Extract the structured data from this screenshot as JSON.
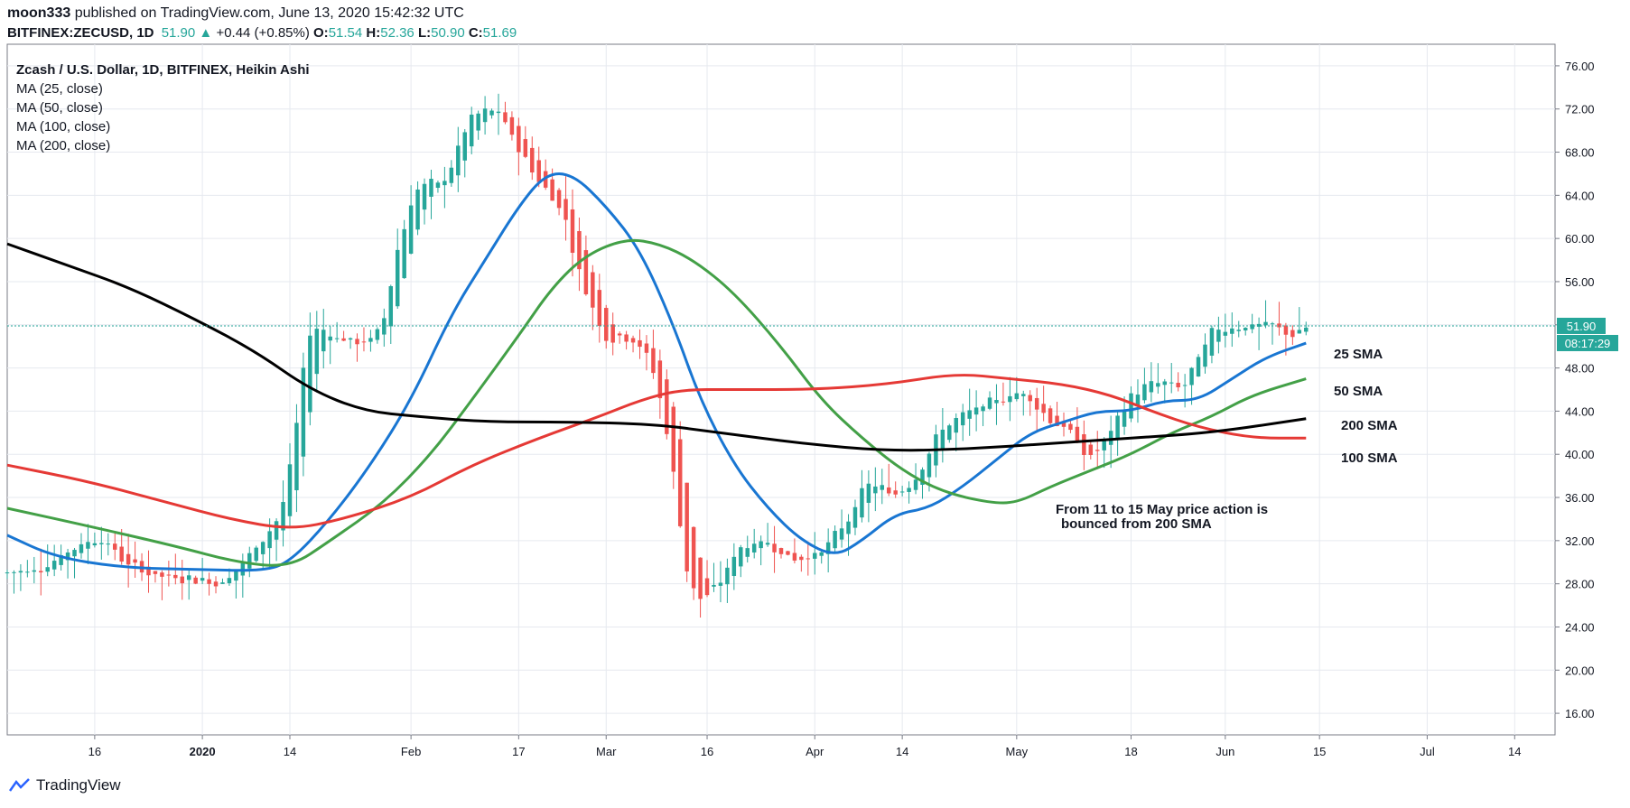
{
  "header": {
    "author": "moon333",
    "published": " published on TradingView.com, June 13, 2020 15:42:32 UTC",
    "symbol": "BITFINEX:ZECUSD, 1D",
    "last": "51.90",
    "change": "+0.44 (+0.85%)",
    "o_label": "O:",
    "o": "51.54",
    "h_label": "H:",
    "h": "52.36",
    "l_label": "L:",
    "l": "50.90",
    "c_label": "C:",
    "c": "51.69"
  },
  "legend": {
    "title": "Zcash / U.S. Dollar, 1D, BITFINEX, Heikin Ashi",
    "ma25": "MA (25, close)",
    "ma50": "MA (50, close)",
    "ma100": "MA (100, close)",
    "ma200": "MA (200, close)"
  },
  "annotations": {
    "sma25": "25 SMA",
    "sma50": "50 SMA",
    "sma200": "200 SMA",
    "sma100": "100 SMA",
    "note_line1": "From 11 to 15 May price action is",
    "note_line2": "bounced from 200 SMA"
  },
  "price_badge": "51.90",
  "countdown_badge": "08:17:29",
  "brand": "TradingView",
  "colors": {
    "up": "#26a69a",
    "down": "#ef5350",
    "ma25": "#1976d2",
    "ma50": "#43a047",
    "ma100": "#e53935",
    "ma200": "#000000",
    "grid": "#e6e9ef"
  },
  "chart_data": {
    "type": "line",
    "chart_style": "heikin-ashi candlestick",
    "ylim": [
      14,
      78
    ],
    "xlim": [
      "2019-12-03",
      "2020-07-20"
    ],
    "y_ticks": [
      "16.00",
      "20.00",
      "24.00",
      "28.00",
      "32.00",
      "36.00",
      "40.00",
      "44.00",
      "48.00",
      "52.00",
      "56.00",
      "60.00",
      "64.00",
      "68.00",
      "72.00",
      "76.00"
    ],
    "x_ticks": [
      {
        "label": "16",
        "date": "2019-12-16",
        "bold": false
      },
      {
        "label": "2020",
        "date": "2020-01-01",
        "bold": true
      },
      {
        "label": "14",
        "date": "2020-01-14",
        "bold": false
      },
      {
        "label": "Feb",
        "date": "2020-02-01",
        "bold": false
      },
      {
        "label": "17",
        "date": "2020-02-17",
        "bold": false
      },
      {
        "label": "Mar",
        "date": "2020-03-01",
        "bold": false
      },
      {
        "label": "16",
        "date": "2020-03-16",
        "bold": false
      },
      {
        "label": "Apr",
        "date": "2020-04-01",
        "bold": false
      },
      {
        "label": "14",
        "date": "2020-04-14",
        "bold": false
      },
      {
        "label": "May",
        "date": "2020-05-01",
        "bold": false
      },
      {
        "label": "18",
        "date": "2020-05-18",
        "bold": false
      },
      {
        "label": "Jun",
        "date": "2020-06-01",
        "bold": false
      },
      {
        "label": "15",
        "date": "2020-06-15",
        "bold": false
      },
      {
        "label": "Jul",
        "date": "2020-07-01",
        "bold": false
      },
      {
        "label": "14",
        "date": "2020-07-14",
        "bold": false
      }
    ],
    "last_price": 51.9,
    "grid": true,
    "close_anchors": [
      [
        "2019-12-03",
        29
      ],
      [
        "2019-12-08",
        29.5
      ],
      [
        "2019-12-13",
        31.5
      ],
      [
        "2019-12-17",
        32.5
      ],
      [
        "2019-12-21",
        29.5
      ],
      [
        "2019-12-26",
        28.5
      ],
      [
        "2019-12-31",
        28.5
      ],
      [
        "2020-01-04",
        28
      ],
      [
        "2020-01-09",
        31.5
      ],
      [
        "2020-01-13",
        35
      ],
      [
        "2020-01-15",
        43
      ],
      [
        "2020-01-17",
        54
      ],
      [
        "2020-01-21",
        51
      ],
      [
        "2020-01-25",
        50
      ],
      [
        "2020-01-28",
        52
      ],
      [
        "2020-01-30",
        60
      ],
      [
        "2020-02-02",
        66
      ],
      [
        "2020-02-06",
        65
      ],
      [
        "2020-02-10",
        72
      ],
      [
        "2020-02-14",
        72
      ],
      [
        "2020-02-17",
        68
      ],
      [
        "2020-02-20",
        65
      ],
      [
        "2020-02-24",
        62
      ],
      [
        "2020-02-26",
        56
      ],
      [
        "2020-03-01",
        50
      ],
      [
        "2020-03-05",
        51
      ],
      [
        "2020-03-08",
        48
      ],
      [
        "2020-03-10",
        42
      ],
      [
        "2020-03-12",
        33
      ],
      [
        "2020-03-13",
        27
      ],
      [
        "2020-03-15",
        25
      ],
      [
        "2020-03-18",
        28
      ],
      [
        "2020-03-21",
        32
      ],
      [
        "2020-03-25",
        32
      ],
      [
        "2020-03-29",
        30
      ],
      [
        "2020-04-02",
        31
      ],
      [
        "2020-04-06",
        34
      ],
      [
        "2020-04-09",
        38
      ],
      [
        "2020-04-13",
        36
      ],
      [
        "2020-04-16",
        38
      ],
      [
        "2020-04-20",
        43
      ],
      [
        "2020-04-24",
        44
      ],
      [
        "2020-04-28",
        45
      ],
      [
        "2020-05-02",
        46
      ],
      [
        "2020-05-06",
        43
      ],
      [
        "2020-05-09",
        42
      ],
      [
        "2020-05-12",
        39
      ],
      [
        "2020-05-15",
        42
      ],
      [
        "2020-05-18",
        46
      ],
      [
        "2020-05-22",
        47
      ],
      [
        "2020-05-26",
        46
      ],
      [
        "2020-05-30",
        52
      ],
      [
        "2020-06-03",
        52
      ],
      [
        "2020-06-08",
        52
      ],
      [
        "2020-06-10",
        51
      ],
      [
        "2020-06-12",
        51
      ],
      [
        "2020-06-13",
        51.9
      ]
    ],
    "series": [
      {
        "name": "25 SMA",
        "color": "#1976d2",
        "points": [
          [
            "2019-12-03",
            32.5
          ],
          [
            "2019-12-10",
            30.5
          ],
          [
            "2019-12-20",
            29.5
          ],
          [
            "2020-01-01",
            29.3
          ],
          [
            "2020-01-10",
            29.2
          ],
          [
            "2020-01-14",
            30
          ],
          [
            "2020-01-20",
            34
          ],
          [
            "2020-01-26",
            39
          ],
          [
            "2020-02-01",
            45
          ],
          [
            "2020-02-07",
            53
          ],
          [
            "2020-02-12",
            58
          ],
          [
            "2020-02-17",
            63
          ],
          [
            "2020-02-21",
            66
          ],
          [
            "2020-02-25",
            66
          ],
          [
            "2020-03-01",
            63
          ],
          [
            "2020-03-06",
            59
          ],
          [
            "2020-03-11",
            52
          ],
          [
            "2020-03-15",
            45
          ],
          [
            "2020-03-20",
            39
          ],
          [
            "2020-03-25",
            35
          ],
          [
            "2020-03-30",
            32
          ],
          [
            "2020-04-04",
            30.5
          ],
          [
            "2020-04-08",
            32
          ],
          [
            "2020-04-13",
            34.5
          ],
          [
            "2020-04-18",
            35
          ],
          [
            "2020-04-23",
            37
          ],
          [
            "2020-04-28",
            39.5
          ],
          [
            "2020-05-03",
            42
          ],
          [
            "2020-05-08",
            43
          ],
          [
            "2020-05-13",
            44
          ],
          [
            "2020-05-18",
            44
          ],
          [
            "2020-05-23",
            45
          ],
          [
            "2020-05-28",
            45
          ],
          [
            "2020-06-02",
            47
          ],
          [
            "2020-06-07",
            49
          ],
          [
            "2020-06-13",
            50.3
          ]
        ]
      },
      {
        "name": "50 SMA",
        "color": "#43a047",
        "points": [
          [
            "2019-12-03",
            35
          ],
          [
            "2019-12-14",
            33.5
          ],
          [
            "2019-12-28",
            31.5
          ],
          [
            "2020-01-06",
            30
          ],
          [
            "2020-01-14",
            29.5
          ],
          [
            "2020-01-20",
            32
          ],
          [
            "2020-01-28",
            35.5
          ],
          [
            "2020-02-04",
            40
          ],
          [
            "2020-02-10",
            45
          ],
          [
            "2020-02-17",
            51
          ],
          [
            "2020-02-22",
            55.5
          ],
          [
            "2020-02-27",
            58.5
          ],
          [
            "2020-03-04",
            60
          ],
          [
            "2020-03-09",
            59.5
          ],
          [
            "2020-03-14",
            58
          ],
          [
            "2020-03-20",
            55
          ],
          [
            "2020-03-27",
            50
          ],
          [
            "2020-04-02",
            45
          ],
          [
            "2020-04-08",
            41.5
          ],
          [
            "2020-04-14",
            38.5
          ],
          [
            "2020-04-20",
            36.5
          ],
          [
            "2020-04-27",
            35.5
          ],
          [
            "2020-05-01",
            35.5
          ],
          [
            "2020-05-06",
            37
          ],
          [
            "2020-05-12",
            38.5
          ],
          [
            "2020-05-18",
            40
          ],
          [
            "2020-05-24",
            42
          ],
          [
            "2020-05-30",
            43.5
          ],
          [
            "2020-06-05",
            45.5
          ],
          [
            "2020-06-13",
            47
          ]
        ]
      },
      {
        "name": "100 SMA",
        "color": "#e53935",
        "points": [
          [
            "2019-12-03",
            39
          ],
          [
            "2019-12-15",
            37.5
          ],
          [
            "2019-12-27",
            35.5
          ],
          [
            "2020-01-05",
            34
          ],
          [
            "2020-01-14",
            33
          ],
          [
            "2020-01-22",
            34
          ],
          [
            "2020-02-01",
            36
          ],
          [
            "2020-02-10",
            39
          ],
          [
            "2020-02-20",
            41.5
          ],
          [
            "2020-02-29",
            43.5
          ],
          [
            "2020-03-06",
            45
          ],
          [
            "2020-03-12",
            46
          ],
          [
            "2020-03-20",
            46
          ],
          [
            "2020-04-01",
            46
          ],
          [
            "2020-04-12",
            46.5
          ],
          [
            "2020-04-22",
            47.5
          ],
          [
            "2020-04-30",
            47
          ],
          [
            "2020-05-08",
            46.5
          ],
          [
            "2020-05-15",
            45.5
          ],
          [
            "2020-05-21",
            44
          ],
          [
            "2020-05-28",
            42.5
          ],
          [
            "2020-06-05",
            41.5
          ],
          [
            "2020-06-13",
            41.5
          ]
        ]
      },
      {
        "name": "200 SMA",
        "color": "#000000",
        "points": [
          [
            "2019-12-03",
            59.5
          ],
          [
            "2019-12-12",
            57.5
          ],
          [
            "2019-12-21",
            55.5
          ],
          [
            "2019-12-31",
            52.5
          ],
          [
            "2020-01-09",
            49.5
          ],
          [
            "2020-01-17",
            46
          ],
          [
            "2020-01-25",
            44
          ],
          [
            "2020-02-02",
            43.5
          ],
          [
            "2020-02-12",
            43
          ],
          [
            "2020-02-24",
            43
          ],
          [
            "2020-03-08",
            42.8
          ],
          [
            "2020-03-18",
            42
          ],
          [
            "2020-03-30",
            41
          ],
          [
            "2020-04-12",
            40.3
          ],
          [
            "2020-04-24",
            40.5
          ],
          [
            "2020-05-06",
            41
          ],
          [
            "2020-05-18",
            41.5
          ],
          [
            "2020-05-30",
            42
          ],
          [
            "2020-06-13",
            43.3
          ]
        ]
      }
    ]
  }
}
